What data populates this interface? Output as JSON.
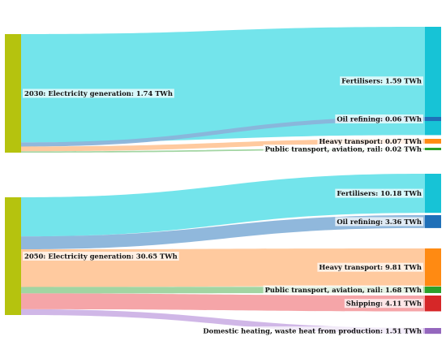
{
  "chart_data": [
    {
      "type": "sankey",
      "year": "2030",
      "source": {
        "label": "2030: Electricity generation: 1.74 TWh",
        "value": 1.74,
        "color": "#b5c30e"
      },
      "targets": [
        {
          "label": "Fertilisers: 1.59 TWh",
          "value": 1.59,
          "node_color": "#17c3d6",
          "link_color": "#6ce3ea"
        },
        {
          "label": "Oil refining: 0.06 TWh",
          "value": 0.06,
          "node_color": "#1f70b8",
          "link_color": "#8ab4da"
        },
        {
          "label": "Heavy transport: 0.07 TWh",
          "value": 0.07,
          "node_color": "#ff8a12",
          "link_color": "#ffc79a"
        },
        {
          "label": "Public transport, aviation, rail: 0.02 TWh",
          "value": 0.02,
          "node_color": "#2aa02a",
          "link_color": "#9dd39d"
        }
      ]
    },
    {
      "type": "sankey",
      "year": "2050",
      "source": {
        "label": "2050: Electricity generation: 30.65 TWh",
        "value": 30.65,
        "color": "#b5c30e"
      },
      "targets": [
        {
          "label": "Fertilisers: 10.18 TWh",
          "value": 10.18,
          "node_color": "#17c3d6",
          "link_color": "#6ce3ea"
        },
        {
          "label": "Oil refining: 3.36 TWh",
          "value": 3.36,
          "node_color": "#1f70b8",
          "link_color": "#8ab4da"
        },
        {
          "label": "Heavy transport: 9.81 TWh",
          "value": 9.81,
          "node_color": "#ff8a12",
          "link_color": "#ffc79a"
        },
        {
          "label": "Public transport, aviation, rail: 1.68 TWh",
          "value": 1.68,
          "node_color": "#2aa02a",
          "link_color": "#9dd39d"
        },
        {
          "label": "Shipping: 4.11 TWh",
          "value": 4.11,
          "node_color": "#d62728",
          "link_color": "#f4a0a3"
        },
        {
          "label": "Domestic heating, waste heat from production: 1.51 TWh",
          "value": 1.51,
          "node_color": "#9467bd",
          "link_color": "#cdb3e6"
        }
      ]
    }
  ]
}
